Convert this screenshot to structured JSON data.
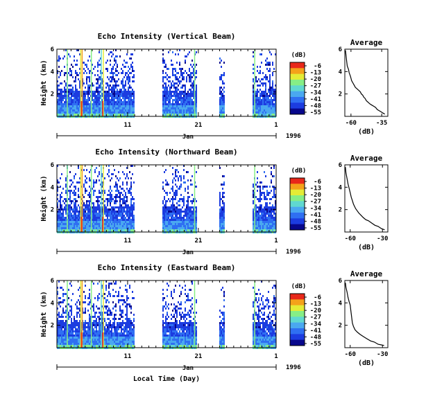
{
  "chart_data": [
    {
      "type": "heatmap",
      "title": "Echo Intensity (Vertical Beam)",
      "ylabel": "Height (km)",
      "ylim": [
        0,
        6
      ],
      "yticks": [
        "6",
        "4",
        "2"
      ],
      "xticks": [
        "11",
        "21",
        "1"
      ],
      "xsub_label": "Jan",
      "year_label": "1996",
      "colorbar": {
        "unit": "(dB)",
        "levels": [
          "-6",
          "-13",
          "-20",
          "-27",
          "-34",
          "-41",
          "-48",
          "-55"
        ]
      },
      "profile": {
        "title": "Average",
        "xlabel": "(dB)",
        "xticks": [
          "-60",
          "-35"
        ],
        "xlim": [
          -65,
          -30
        ],
        "yticks": [
          "6",
          "4",
          "2"
        ],
        "ylim": [
          0,
          6
        ],
        "x": [
          -64.5,
          -64.0,
          -63.5,
          -63.0,
          -62.0,
          -61.5,
          -60.5,
          -60.0,
          -59.5,
          -58.5,
          -58.0,
          -57.0,
          -56.5,
          -55.5,
          -54.5,
          -53.5,
          -52.5,
          -51.5,
          -50.5,
          -49.5,
          -48.5,
          -47.5,
          -46.5,
          -45.5,
          -44.5,
          -43.0,
          -41.5,
          -40.0,
          -38.5,
          -37.0,
          -35.5,
          -34.0,
          -32.5
        ],
        "y": [
          5.9,
          5.4,
          4.9,
          4.5,
          4.2,
          3.9,
          3.6,
          3.4,
          3.2,
          3.0,
          2.9,
          2.7,
          2.6,
          2.5,
          2.4,
          2.3,
          2.2,
          2.0,
          1.9,
          1.7,
          1.6,
          1.4,
          1.3,
          1.2,
          1.1,
          1.0,
          0.9,
          0.8,
          0.6,
          0.5,
          0.4,
          0.3,
          0.2
        ]
      }
    },
    {
      "type": "heatmap",
      "title": "Echo Intensity (Northward Beam)",
      "ylabel": "Height (km)",
      "ylim": [
        0,
        6
      ],
      "yticks": [
        "6",
        "4",
        "2"
      ],
      "xticks": [
        "11",
        "21",
        "1"
      ],
      "xsub_label": "Jan",
      "year_label": "1996",
      "colorbar": {
        "unit": "(dB)",
        "levels": [
          "-6",
          "-13",
          "-20",
          "-27",
          "-34",
          "-41",
          "-48",
          "-55"
        ]
      },
      "profile": {
        "title": "Average",
        "xlabel": "(dB)",
        "xticks": [
          "-60",
          "-30"
        ],
        "xlim": [
          -65,
          -25
        ],
        "yticks": [
          "6",
          "4",
          "2"
        ],
        "ylim": [
          0,
          6
        ],
        "x": [
          -64.5,
          -64.0,
          -63.0,
          -62.0,
          -61.0,
          -60.0,
          -59.0,
          -58.0,
          -57.0,
          -56.0,
          -55.0,
          -53.5,
          -52.0,
          -50.0,
          -48.0,
          -45.5,
          -43.0,
          -40.0,
          -37.0,
          -34.0,
          -31.0,
          -28.0
        ],
        "y": [
          5.8,
          5.3,
          4.8,
          4.3,
          3.9,
          3.5,
          3.1,
          2.8,
          2.5,
          2.3,
          2.1,
          1.9,
          1.7,
          1.5,
          1.3,
          1.1,
          1.0,
          0.8,
          0.6,
          0.5,
          0.3,
          0.2
        ]
      }
    },
    {
      "type": "heatmap",
      "title": "Echo Intensity (Eastward Beam)",
      "ylabel": "Height (km)",
      "xlabel": "Local Time (Day)",
      "ylim": [
        0,
        6
      ],
      "yticks": [
        "6",
        "4",
        "2"
      ],
      "xticks": [
        "11",
        "21",
        "1"
      ],
      "xsub_label": "Jan",
      "year_label": "1996",
      "colorbar": {
        "unit": "(dB)",
        "levels": [
          "-6",
          "-13",
          "-20",
          "-27",
          "-34",
          "-41",
          "-48",
          "-55"
        ]
      },
      "profile": {
        "title": "Average",
        "xlabel": "(dB)",
        "xticks": [
          "-60",
          "-30"
        ],
        "xlim": [
          -65,
          -25
        ],
        "yticks": [
          "6",
          "4",
          "2"
        ],
        "ylim": [
          0,
          6
        ],
        "x": [
          -64.5,
          -64.0,
          -63.0,
          -62.0,
          -61.0,
          -60.0,
          -59.5,
          -59.0,
          -58.5,
          -58.0,
          -57.0,
          -55.5,
          -53.5,
          -51.0,
          -48.0,
          -44.5,
          -41.0,
          -37.5,
          -34.0,
          -31.0,
          -28.5
        ],
        "y": [
          5.8,
          5.4,
          5.0,
          4.5,
          4.1,
          3.8,
          3.4,
          3.0,
          2.6,
          2.2,
          1.9,
          1.6,
          1.4,
          1.2,
          1.0,
          0.8,
          0.6,
          0.5,
          0.3,
          0.25,
          0.2
        ]
      }
    }
  ],
  "colors": [
    "#08088c",
    "#1c3ce0",
    "#2f6ff2",
    "#4aa8f0",
    "#60d8d0",
    "#86ee86",
    "#e4ec36",
    "#f4a21a",
    "#e8281a"
  ]
}
